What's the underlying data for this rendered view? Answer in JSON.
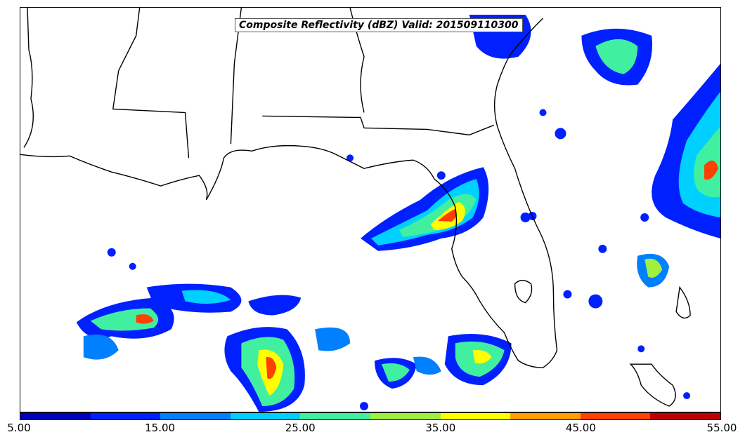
{
  "map": {
    "title": "Composite Reflectivity (dBZ) Valid: 201509110300",
    "variable": "Composite Reflectivity",
    "units": "dBZ",
    "valid_time": "201509110300",
    "region": "Southeastern United States and Gulf of Mexico"
  },
  "colorbar": {
    "min": 5.0,
    "max": 55.0,
    "step": 5.0,
    "tick_labels": [
      "5.00",
      "15.00",
      "25.00",
      "35.00",
      "45.00",
      "55.00"
    ],
    "colors": [
      "#0000c0",
      "#0020ff",
      "#0080ff",
      "#00d0ff",
      "#40f0a0",
      "#a0f040",
      "#ffff00",
      "#ffa000",
      "#ff4000",
      "#c00000"
    ]
  },
  "colors": {
    "frame": "#000000",
    "coastline": "#000000",
    "background": "#ffffff"
  }
}
